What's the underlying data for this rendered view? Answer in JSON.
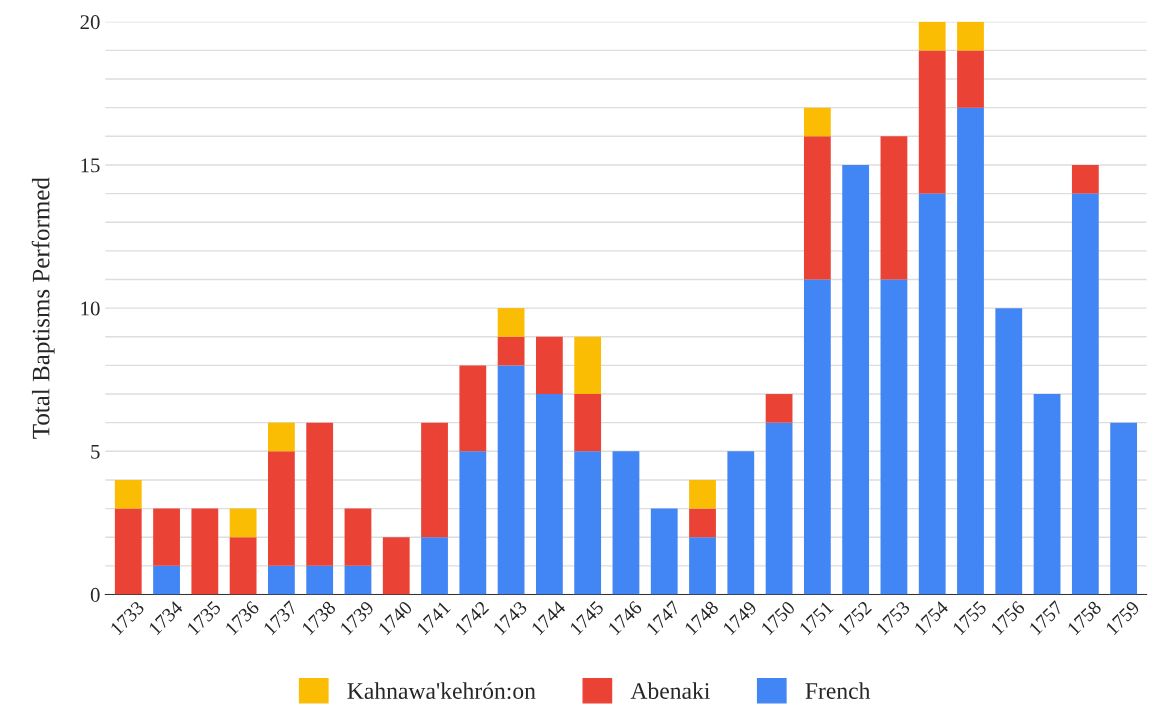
{
  "chart_data": {
    "type": "bar",
    "stacked": true,
    "ylabel": "Total Baptisms Performed",
    "categories": [
      "1733",
      "1734",
      "1735",
      "1736",
      "1737",
      "1738",
      "1739",
      "1740",
      "1741",
      "1742",
      "1743",
      "1744",
      "1745",
      "1746",
      "1747",
      "1748",
      "1749",
      "1750",
      "1751",
      "1752",
      "1753",
      "1754",
      "1755",
      "1756",
      "1757",
      "1758",
      "1759"
    ],
    "series": [
      {
        "name": "French",
        "color": "#4285f4",
        "values": [
          0,
          1,
          0,
          0,
          1,
          1,
          1,
          0,
          2,
          5,
          8,
          7,
          5,
          5,
          3,
          2,
          5,
          6,
          11,
          15,
          11,
          14,
          17,
          10,
          7,
          14,
          6
        ]
      },
      {
        "name": "Abenaki",
        "color": "#ea4335",
        "values": [
          3,
          2,
          3,
          2,
          4,
          5,
          2,
          2,
          4,
          3,
          1,
          2,
          2,
          0,
          0,
          1,
          0,
          1,
          5,
          0,
          5,
          5,
          2,
          0,
          0,
          1,
          0
        ]
      },
      {
        "name": "Kahnawa'kehrón:on",
        "color": "#fbbc04",
        "values": [
          1,
          0,
          0,
          1,
          1,
          0,
          0,
          0,
          0,
          0,
          1,
          0,
          2,
          0,
          0,
          1,
          0,
          0,
          1,
          0,
          0,
          1,
          1,
          0,
          0,
          0,
          0
        ]
      }
    ],
    "ylim": [
      0,
      20
    ],
    "yticks": [
      0,
      {
        "value": 1,
        "label": null
      },
      {
        "value": 2,
        "label": null
      },
      {
        "value": 3,
        "label": null
      },
      {
        "value": 4,
        "label": null
      },
      5,
      {
        "value": 6,
        "label": null
      },
      {
        "value": 7,
        "label": null
      },
      {
        "value": 8,
        "label": null
      },
      {
        "value": 9,
        "label": null
      },
      10,
      {
        "value": 11,
        "label": null
      },
      {
        "value": 12,
        "label": null
      },
      {
        "value": 13,
        "label": null
      },
      {
        "value": 14,
        "label": null
      },
      15,
      {
        "value": 16,
        "label": null
      },
      {
        "value": 17,
        "label": null
      },
      {
        "value": 18,
        "label": null
      },
      {
        "value": 19,
        "label": null
      },
      20
    ],
    "grid": "y",
    "legend": "bottom"
  }
}
